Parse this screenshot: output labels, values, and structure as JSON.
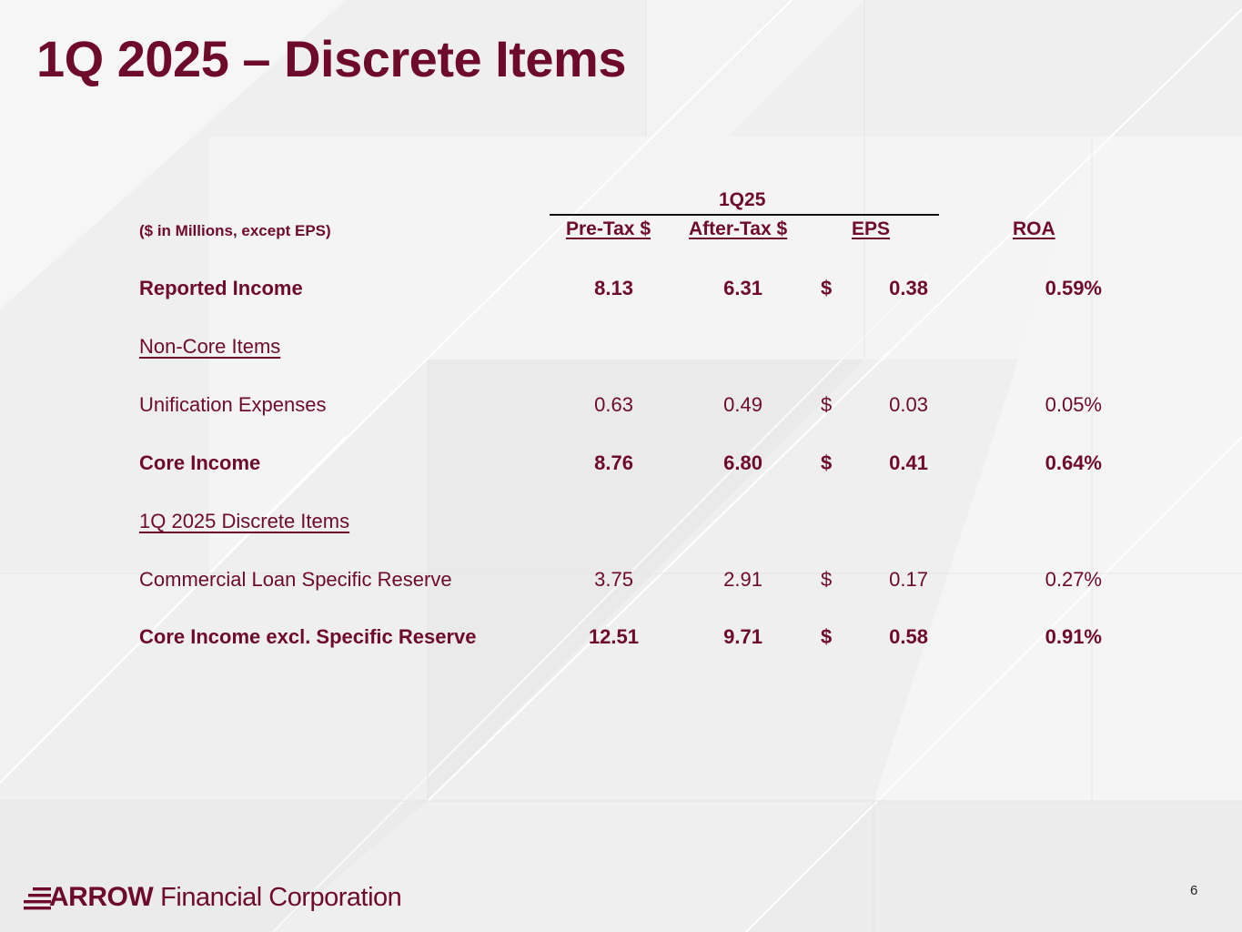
{
  "slide": {
    "title": "1Q 2025 – Discrete Items",
    "page_number": "6"
  },
  "table": {
    "group_header": "1Q25",
    "units_label": "($ in Millions, except EPS)",
    "columns": {
      "pretax": "Pre-Tax $",
      "aftertax": "After-Tax $",
      "eps": "EPS",
      "roa": "ROA"
    },
    "rows": [
      {
        "label": "Reported Income",
        "pretax": "8.13",
        "aftertax": "6.31",
        "eps_symbol": "$",
        "eps": "0.38",
        "roa": "0.59%"
      },
      {
        "label": "Non-Core Items"
      },
      {
        "label": "Unification Expenses",
        "pretax": "0.63",
        "aftertax": "0.49",
        "eps_symbol": "$",
        "eps": "0.03",
        "roa": "0.05%"
      },
      {
        "label": "Core Income",
        "pretax": "8.76",
        "aftertax": "6.80",
        "eps_symbol": "$",
        "eps": "0.41",
        "roa": "0.64%"
      },
      {
        "label": "1Q 2025 Discrete Items"
      },
      {
        "label": "Commercial Loan Specific Reserve",
        "pretax": "3.75",
        "aftertax": "2.91",
        "eps_symbol": "$",
        "eps": "0.17",
        "roa": "0.27%"
      },
      {
        "label": "Core Income excl. Specific Reserve",
        "pretax": "12.51",
        "aftertax": "9.71",
        "eps_symbol": "$",
        "eps": "0.58",
        "roa": "0.91%"
      }
    ]
  },
  "footer": {
    "logo_word": "ARROW",
    "logo_sub": "Financial Corporation"
  },
  "colors": {
    "brand": "#6e0a2a",
    "background": "#efefef"
  },
  "icons": {
    "logo": "arrow-logo-icon"
  }
}
